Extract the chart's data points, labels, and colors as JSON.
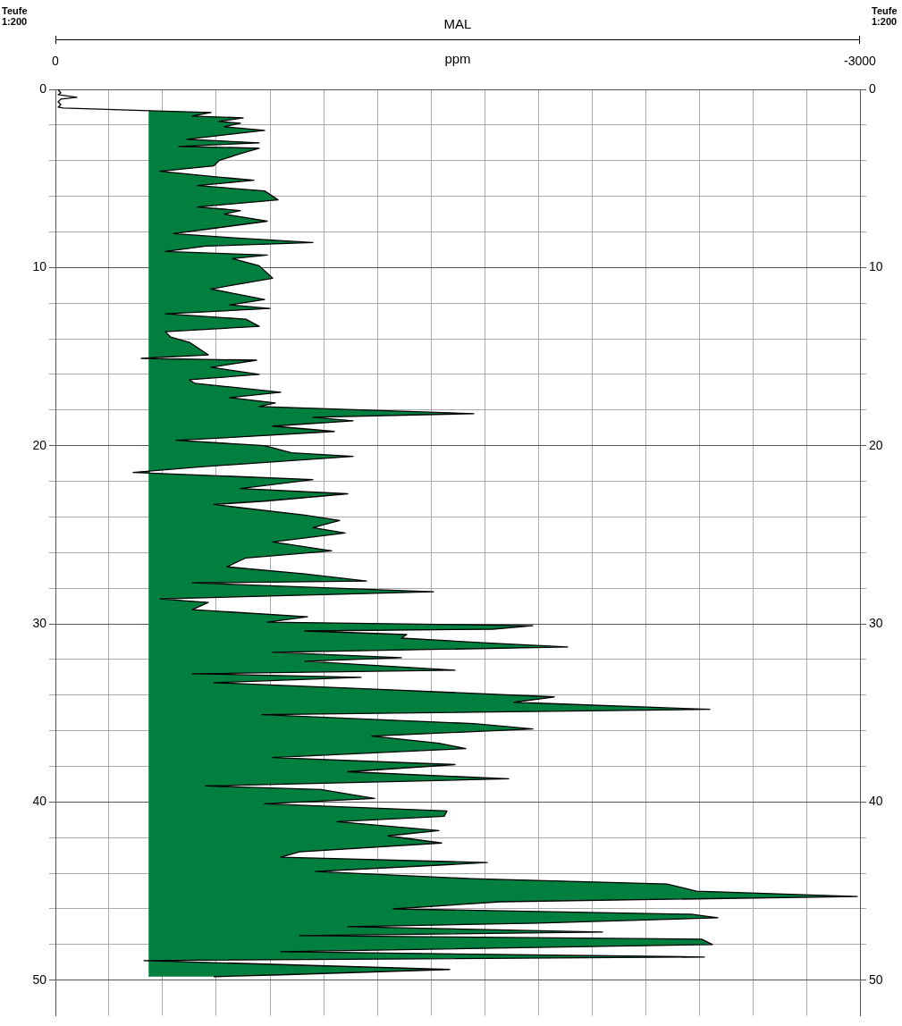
{
  "chart_data": {
    "type": "area",
    "title": "MAL",
    "xlabel": "ppm",
    "ylabel": "Teufe\n1:200",
    "y2label": "Teufe\n1:200",
    "orientation": "horizontal",
    "grid": true,
    "ref_lines": [
      {
        "axis": "x",
        "value": -350,
        "color": "#007f3f"
      }
    ],
    "xlim": [
      0,
      -3000
    ],
    "xticks": [
      0,
      {
        "value": -200,
        "label": null
      },
      {
        "value": -400,
        "label": null
      },
      {
        "value": -600,
        "label": null
      },
      {
        "value": -800,
        "label": null
      },
      {
        "value": -1000,
        "label": null
      },
      {
        "value": -1200,
        "label": null
      },
      {
        "value": -1400,
        "label": null
      },
      {
        "value": -1600,
        "label": null
      },
      {
        "value": -1800,
        "label": null
      },
      {
        "value": -2000,
        "label": null
      },
      {
        "value": -2200,
        "label": null
      },
      {
        "value": -2400,
        "label": null
      },
      {
        "value": -2600,
        "label": null
      },
      {
        "value": -2800,
        "label": null
      },
      -3000
    ],
    "ylim": [
      52,
      0
    ],
    "yticks": [
      0,
      {
        "value": 2,
        "label": null
      },
      {
        "value": 4,
        "label": null
      },
      {
        "value": 6,
        "label": null
      },
      {
        "value": 8,
        "label": null
      },
      10,
      {
        "value": 12,
        "label": null
      },
      {
        "value": 14,
        "label": null
      },
      {
        "value": 16,
        "label": null
      },
      {
        "value": 18,
        "label": null
      },
      20,
      {
        "value": 22,
        "label": null
      },
      {
        "value": 24,
        "label": null
      },
      {
        "value": 26,
        "label": null
      },
      {
        "value": 28,
        "label": null
      },
      30,
      {
        "value": 32,
        "label": null
      },
      {
        "value": 34,
        "label": null
      },
      {
        "value": 36,
        "label": null
      },
      {
        "value": 38,
        "label": null
      },
      40,
      {
        "value": 42,
        "label": null
      },
      {
        "value": 44,
        "label": null
      },
      {
        "value": 46,
        "label": null
      },
      {
        "value": 48,
        "label": null
      },
      50
    ],
    "y2lim": [
      52,
      0
    ],
    "y2ticks": [
      0,
      {
        "value": 2,
        "label": null
      },
      {
        "value": 4,
        "label": null
      },
      {
        "value": 6,
        "label": null
      },
      {
        "value": 8,
        "label": null
      },
      10,
      {
        "value": 12,
        "label": null
      },
      {
        "value": 14,
        "label": null
      },
      {
        "value": 16,
        "label": null
      },
      {
        "value": 18,
        "label": null
      },
      20,
      {
        "value": 22,
        "label": null
      },
      {
        "value": 24,
        "label": null
      },
      {
        "value": 26,
        "label": null
      },
      {
        "value": 28,
        "label": null
      },
      30,
      {
        "value": 32,
        "label": null
      },
      {
        "value": 34,
        "label": null
      },
      {
        "value": 36,
        "label": null
      },
      {
        "value": 38,
        "label": null
      },
      40,
      {
        "value": 42,
        "label": null
      },
      {
        "value": 44,
        "label": null
      },
      {
        "value": 46,
        "label": null
      },
      {
        "value": 48,
        "label": null
      },
      50
    ],
    "series": [
      {
        "type": "line",
        "color": "#000000",
        "x": [
          0,
          0.2,
          0.3,
          0.45,
          0.55,
          0.7,
          0.85,
          1.0,
          1.05,
          1.2
        ],
        "values": [
          -10,
          -20,
          -10,
          -80,
          -20,
          -10,
          -20,
          -10,
          -30,
          -350
        ]
      },
      {
        "type": "area",
        "color": "#007f3f",
        "x": [
          1.2,
          1.3,
          1.5,
          1.6,
          1.8,
          1.9,
          2.1,
          2.3,
          2.8,
          3.0,
          3.2,
          3.3,
          3.6,
          4.0,
          4.3,
          4.6,
          4.9,
          5.1,
          5.4,
          5.7,
          6.0,
          6.2,
          6.6,
          6.8,
          7.0,
          7.4,
          7.8,
          8.1,
          8.3,
          8.6,
          8.8,
          9.1,
          9.3,
          9.5,
          9.9,
          10.6,
          11.2,
          11.8,
          12.1,
          12.3,
          12.6,
          12.9,
          13.3,
          13.6,
          13.9,
          14.2,
          14.7,
          14.9,
          15.1,
          15.2,
          15.6,
          16.0,
          16.3,
          16.5,
          16.7,
          17.0,
          17.3,
          17.6,
          17.8,
          18.2,
          18.4,
          18.6,
          18.9,
          19.2,
          19.5,
          19.7,
          20.0,
          20.4,
          20.6,
          21.2,
          21.5,
          21.9,
          22.4,
          22.7,
          23.1,
          23.3,
          23.9,
          24.2,
          24.6,
          24.9,
          25.4,
          25.9,
          26.3,
          26.8,
          27.2,
          27.6,
          27.7,
          28.2,
          28.6,
          28.8,
          29.2,
          29.6,
          29.9,
          30.1,
          30.3,
          30.4,
          30.6,
          30.8,
          31.1,
          31.3,
          31.6,
          31.9,
          32.1,
          32.6,
          32.8,
          33.0,
          33.3,
          33.6,
          34.1,
          34.4,
          34.8,
          35.1,
          35.6,
          35.9,
          36.3,
          36.7,
          37.0,
          37.5,
          37.9,
          38.3,
          38.7,
          39.1,
          39.3,
          39.8,
          40.1,
          40.5,
          40.8,
          41.1,
          41.6,
          41.9,
          42.3,
          42.8,
          43.1,
          43.4,
          43.9,
          44.3,
          44.6,
          45.0,
          45.3,
          45.6,
          46.0,
          46.3,
          46.5,
          46.8,
          47.0,
          47.3,
          47.5,
          47.7,
          48.0,
          48.4,
          48.7,
          48.9,
          49.4,
          49.7,
          49.8
        ],
        "values": [
          -350,
          -580,
          -510,
          -700,
          -610,
          -690,
          -630,
          -780,
          -490,
          -760,
          -460,
          -760,
          -690,
          -610,
          -590,
          -390,
          -590,
          -740,
          -530,
          -780,
          -810,
          -830,
          -530,
          -690,
          -630,
          -790,
          -590,
          -440,
          -630,
          -960,
          -560,
          -410,
          -790,
          -660,
          -760,
          -810,
          -580,
          -780,
          -650,
          -800,
          -410,
          -710,
          -760,
          -410,
          -430,
          -500,
          -550,
          -570,
          -320,
          -750,
          -580,
          -760,
          -500,
          -520,
          -650,
          -840,
          -650,
          -820,
          -760,
          -1560,
          -960,
          -1110,
          -810,
          -1040,
          -700,
          -450,
          -780,
          -880,
          -1110,
          -530,
          -290,
          -960,
          -690,
          -1090,
          -790,
          -590,
          -930,
          -1060,
          -960,
          -1080,
          -810,
          -1030,
          -710,
          -640,
          -930,
          -1160,
          -510,
          -1410,
          -390,
          -570,
          -510,
          -940,
          -790,
          -1780,
          -1630,
          -930,
          -1310,
          -1290,
          -1640,
          -1910,
          -810,
          -1290,
          -930,
          -1490,
          -510,
          -1140,
          -590,
          -1090,
          -1860,
          -1710,
          -2440,
          -770,
          -1560,
          -1780,
          -1180,
          -1430,
          -1530,
          -810,
          -1490,
          -1090,
          -1690,
          -560,
          -990,
          -1190,
          -780,
          -1460,
          -1450,
          -1050,
          -1430,
          -1240,
          -1440,
          -910,
          -840,
          -1610,
          -970,
          -1550,
          -2280,
          -2390,
          -2990,
          -1660,
          -1260,
          -2370,
          -2470,
          -1800,
          -1090,
          -2040,
          -910,
          -2410,
          -2450,
          -840,
          -2420,
          -330,
          -1470,
          -840,
          -590
        ]
      }
    ]
  }
}
